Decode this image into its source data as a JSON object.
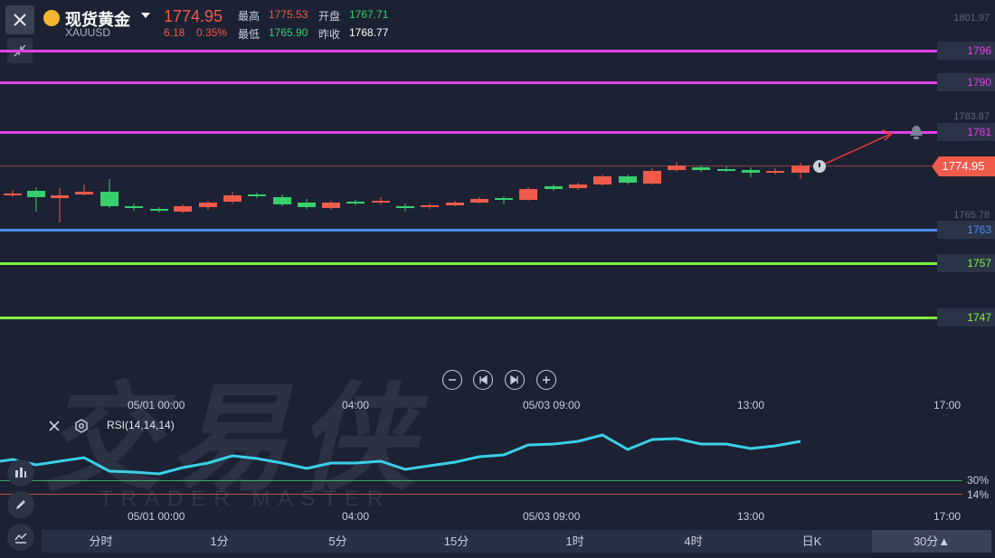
{
  "header": {
    "name": "现货黄金",
    "code": "XAUUSD",
    "price": "1774.95",
    "change": "6.18",
    "change_pct": "0.35%",
    "high_label": "最高",
    "high_value": "1775.53",
    "open_label": "开盘",
    "open_value": "1767.71",
    "low_label": "最低",
    "low_value": "1765.90",
    "prev_close_label": "昨收",
    "prev_close_value": "1768.77"
  },
  "price_axis": {
    "top": "1801.97",
    "mid": "1783.87",
    "low": "1765.78"
  },
  "current_price_tag": "1774.95",
  "levels": [
    {
      "label": "1796",
      "color": "#e040e8"
    },
    {
      "label": "1790",
      "color": "#e040e8"
    },
    {
      "label": "1781",
      "color": "#e040e8"
    },
    {
      "label": "1763",
      "color": "#4d8ef0"
    },
    {
      "label": "1757",
      "color": "#7ef542"
    },
    {
      "label": "1747",
      "color": "#7ef542"
    }
  ],
  "time_axis_main": [
    "05/01 00:00",
    "04:00",
    "05/03 09:00",
    "13:00",
    "17:00"
  ],
  "time_axis_rsi": [
    "05/01 00:00",
    "04:00",
    "05/03 09:00",
    "13:00",
    "17:00"
  ],
  "rsi": {
    "label": "RSI(14,14,14)",
    "level_30": "30%",
    "level_14": "14%",
    "line_color": "#3ad0e8"
  },
  "watermark": {
    "cn": "交易侠",
    "en": "TRADER MASTER"
  },
  "tabs": [
    {
      "label": "分时"
    },
    {
      "label": "1分"
    },
    {
      "label": "5分"
    },
    {
      "label": "15分"
    },
    {
      "label": "1时"
    },
    {
      "label": "4时"
    },
    {
      "label": "日K"
    },
    {
      "label": "30分▲"
    }
  ],
  "colors": {
    "up": "#ef5b4b",
    "down": "#35d06b",
    "background": "#1c2233"
  }
}
